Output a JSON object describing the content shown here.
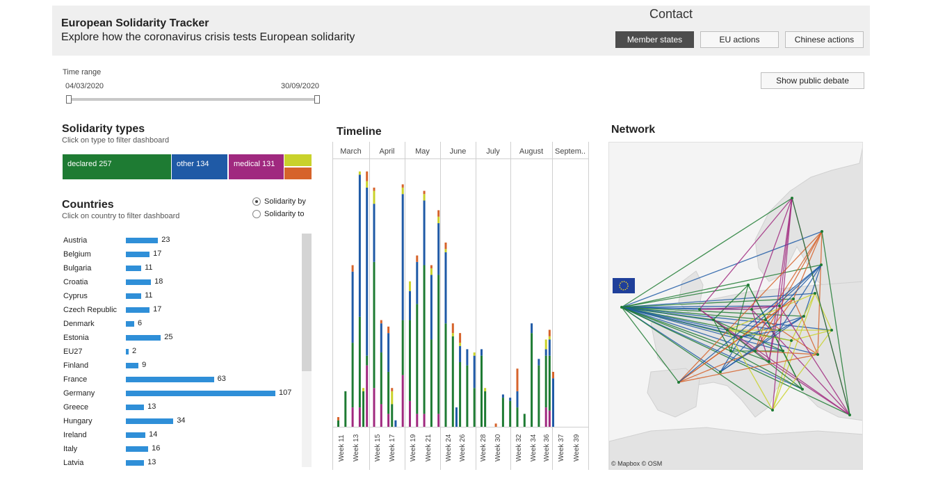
{
  "header": {
    "title": "European Solidarity Tracker",
    "subtitle": "Explore how the coronavirus crisis tests European solidarity",
    "contact": "Contact",
    "tabs": [
      {
        "label": "Member states",
        "active": true
      },
      {
        "label": "EU actions",
        "active": false
      },
      {
        "label": "Chinese actions",
        "active": false
      }
    ]
  },
  "time_range": {
    "label": "Time range",
    "start": "04/03/2020",
    "end": "30/09/2020"
  },
  "public_debate_button": "Show public debate",
  "solidarity_types": {
    "title": "Solidarity types",
    "hint": "Click on type to filter dashboard",
    "items": [
      {
        "label": "declared 257",
        "color": "#1e7b33"
      },
      {
        "label": "other 134",
        "color": "#1f5aa6"
      },
      {
        "label": "medical 131",
        "color": "#a0297f"
      },
      {
        "label": "",
        "color": "#c9d22b"
      },
      {
        "label": "",
        "color": "#d6632b"
      }
    ]
  },
  "countries": {
    "title": "Countries",
    "hint": "Click on country to filter dashboard",
    "radio": [
      {
        "label": "Solidarity by",
        "checked": true
      },
      {
        "label": "Solidarity to",
        "checked": false
      }
    ],
    "bar_color": "#2f8fd8",
    "max_value": 107,
    "rows": [
      {
        "name": "Austria",
        "value": 23
      },
      {
        "name": "Belgium",
        "value": 17
      },
      {
        "name": "Bulgaria",
        "value": 11
      },
      {
        "name": "Croatia",
        "value": 18
      },
      {
        "name": "Cyprus",
        "value": 11
      },
      {
        "name": "Czech Republic",
        "value": 17
      },
      {
        "name": "Denmark",
        "value": 6
      },
      {
        "name": "Estonia",
        "value": 25
      },
      {
        "name": "EU27",
        "value": 2
      },
      {
        "name": "Finland",
        "value": 9
      },
      {
        "name": "France",
        "value": 63
      },
      {
        "name": "Germany",
        "value": 107
      },
      {
        "name": "Greece",
        "value": 13
      },
      {
        "name": "Hungary",
        "value": 34
      },
      {
        "name": "Ireland",
        "value": 14
      },
      {
        "name": "Italy",
        "value": 16
      },
      {
        "name": "Latvia",
        "value": 13
      }
    ]
  },
  "timeline": {
    "title": "Timeline",
    "months": [
      "March",
      "April",
      "May",
      "June",
      "July",
      "August",
      "Septem.."
    ],
    "week_labels": [
      "Week 11",
      "Week 13",
      "Week 15",
      "Week 17",
      "Week 19",
      "Week 21",
      "Week 24",
      "Week 26",
      "Week 28",
      "Week 30",
      "Week 32",
      "Week 34",
      "Week 36",
      "Week 37",
      "Week 39"
    ]
  },
  "chart_data": {
    "type": "bar",
    "title": "Timeline",
    "stacked": true,
    "series_colors": {
      "declared": "#1e7b33",
      "other": "#1f5aa6",
      "medical": "#a0297f",
      "yellow": "#c9d22b",
      "orange": "#d6632b"
    },
    "weeks": [
      {
        "week": 10,
        "month": 0,
        "medical": 0,
        "declared": 2,
        "other": 0,
        "yellow": 0,
        "orange": 1
      },
      {
        "week": 11,
        "month": 0,
        "medical": 0,
        "declared": 11,
        "other": 0,
        "yellow": 0,
        "orange": 0
      },
      {
        "week": 12,
        "month": 0,
        "medical": 6,
        "declared": 20,
        "other": 22,
        "yellow": 0,
        "orange": 2
      },
      {
        "week": 13,
        "month": 0,
        "medical": 6,
        "declared": 28,
        "other": 44,
        "yellow": 1,
        "orange": 0
      },
      {
        "week": 13.5,
        "month": 0,
        "medical": 0,
        "declared": 11,
        "other": 0,
        "yellow": 1,
        "orange": 0
      },
      {
        "week": 14,
        "month": 1,
        "medical": 19,
        "declared": 3,
        "other": 52,
        "yellow": 2,
        "orange": 3
      },
      {
        "week": 15,
        "month": 1,
        "medical": 12,
        "declared": 39,
        "other": 18,
        "yellow": 4,
        "orange": 1
      },
      {
        "week": 16,
        "month": 1,
        "medical": 7,
        "declared": 16,
        "other": 9,
        "yellow": 0,
        "orange": 1
      },
      {
        "week": 17,
        "month": 1,
        "medical": 4,
        "declared": 13,
        "other": 12,
        "yellow": 0,
        "orange": 2
      },
      {
        "week": 17.5,
        "month": 1,
        "medical": 0,
        "declared": 7,
        "other": 0,
        "yellow": 4,
        "orange": 1
      },
      {
        "week": 18,
        "month": 2,
        "medical": 0,
        "declared": 0,
        "other": 2,
        "yellow": 0,
        "orange": 0
      },
      {
        "week": 19,
        "month": 2,
        "medical": 16,
        "declared": 17,
        "other": 39,
        "yellow": 2,
        "orange": 1
      },
      {
        "week": 20,
        "month": 2,
        "medical": 8,
        "declared": 25,
        "other": 9,
        "yellow": 3,
        "orange": 0
      },
      {
        "week": 21,
        "month": 2,
        "medical": 4,
        "declared": 34,
        "other": 13,
        "yellow": 0,
        "orange": 2
      },
      {
        "week": 22,
        "month": 2,
        "medical": 4,
        "declared": 46,
        "other": 20,
        "yellow": 2,
        "orange": 1
      },
      {
        "week": 23,
        "month": 3,
        "medical": 0,
        "declared": 27,
        "other": 20,
        "yellow": 2,
        "orange": 1
      },
      {
        "week": 24,
        "month": 3,
        "medical": 4,
        "declared": 43,
        "other": 16,
        "yellow": 2,
        "orange": 2
      },
      {
        "week": 25,
        "month": 3,
        "medical": 0,
        "declared": 32,
        "other": 22,
        "yellow": 1,
        "orange": 2
      },
      {
        "week": 26,
        "month": 3,
        "medical": 0,
        "declared": 28,
        "other": 0,
        "yellow": 1,
        "orange": 3
      },
      {
        "week": 26.5,
        "month": 3,
        "medical": 0,
        "declared": 0,
        "other": 6,
        "yellow": 0,
        "orange": 0
      },
      {
        "week": 27,
        "month": 4,
        "medical": 0,
        "declared": 20,
        "other": 5,
        "yellow": 1,
        "orange": 3
      },
      {
        "week": 28,
        "month": 4,
        "medical": 0,
        "declared": 19,
        "other": 5,
        "yellow": 0,
        "orange": 0
      },
      {
        "week": 29,
        "month": 4,
        "medical": 0,
        "declared": 12,
        "other": 10,
        "yellow": 1,
        "orange": 0
      },
      {
        "week": 30,
        "month": 4,
        "medical": 0,
        "declared": 22,
        "other": 2,
        "yellow": 0,
        "orange": 0
      },
      {
        "week": 30.5,
        "month": 4,
        "medical": 0,
        "declared": 11,
        "other": 0,
        "yellow": 1,
        "orange": 0
      },
      {
        "week": 32,
        "month": 5,
        "medical": 0,
        "declared": 0,
        "other": 0,
        "yellow": 0,
        "orange": 1
      },
      {
        "week": 33,
        "month": 5,
        "medical": 0,
        "declared": 9,
        "other": 1,
        "yellow": 0,
        "orange": 0
      },
      {
        "week": 34,
        "month": 5,
        "medical": 0,
        "declared": 8,
        "other": 1,
        "yellow": 0,
        "orange": 0
      },
      {
        "week": 35,
        "month": 5,
        "medical": 0,
        "declared": 6,
        "other": 5,
        "yellow": 0,
        "orange": 7
      },
      {
        "week": 36,
        "month": 5,
        "medical": 0,
        "declared": 4,
        "other": 0,
        "yellow": 0,
        "orange": 0
      },
      {
        "week": 37,
        "month": 6,
        "medical": 0,
        "declared": 29,
        "other": 3,
        "yellow": 0,
        "orange": 0
      },
      {
        "week": 38,
        "month": 6,
        "medical": 0,
        "declared": 19,
        "other": 2,
        "yellow": 0,
        "orange": 0
      },
      {
        "week": 39,
        "month": 6,
        "medical": 6,
        "declared": 16,
        "other": 2,
        "yellow": 3,
        "orange": 0
      },
      {
        "week": 39.5,
        "month": 6,
        "medical": 5,
        "declared": 17,
        "other": 5,
        "yellow": 1,
        "orange": 2
      },
      {
        "week": 40,
        "month": 6,
        "medical": 0,
        "declared": 0,
        "other": 15,
        "yellow": 0,
        "orange": 2
      }
    ]
  },
  "network": {
    "title": "Network",
    "attribution": "© Mapbox  © OSM"
  }
}
